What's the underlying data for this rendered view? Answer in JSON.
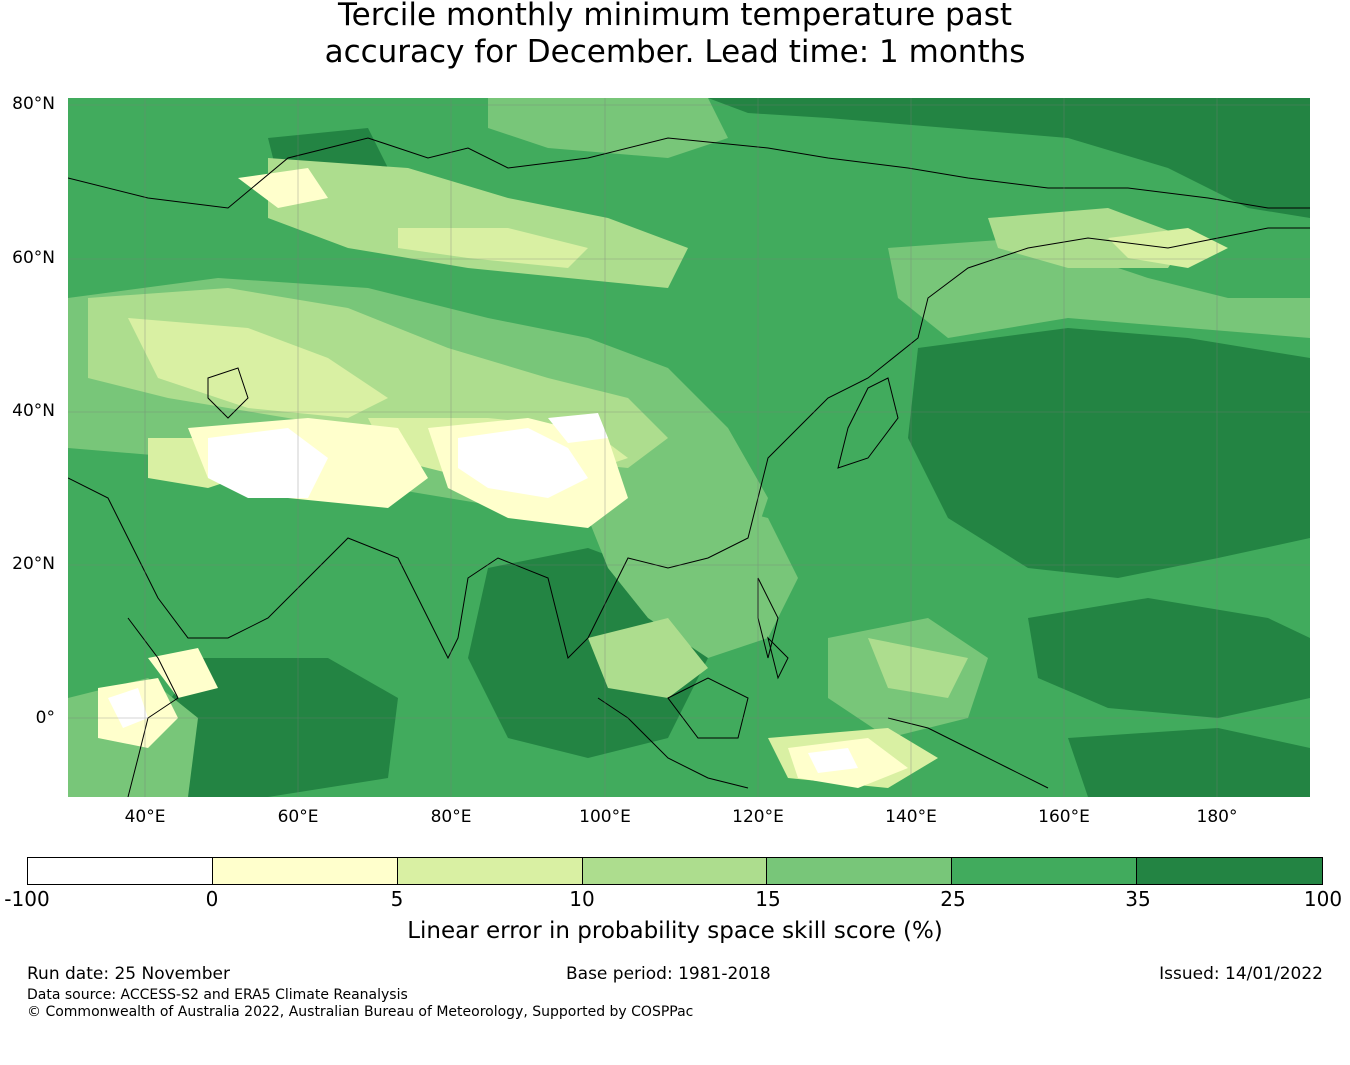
{
  "title": {
    "line1": "Tercile monthly minimum temperature past",
    "line2": "accuracy for December. Lead time: 1 months"
  },
  "map": {
    "lat_labels": [
      "80°N",
      "60°N",
      "40°N",
      "20°N",
      "0°"
    ],
    "lon_labels": [
      "40°E",
      "60°E",
      "80°E",
      "100°E",
      "120°E",
      "140°E",
      "160°E",
      "180°"
    ],
    "extent_lon": [
      30,
      192
    ],
    "extent_lat": [
      -10,
      80
    ],
    "grid": true,
    "background_color": "#41ab5d"
  },
  "colorbar": {
    "label": "Linear error in probability space skill score (%)",
    "ticks": [
      "-100",
      "0",
      "5",
      "10",
      "15",
      "25",
      "35",
      "100"
    ],
    "colors": [
      "#ffffff",
      "#ffffcc",
      "#d9f0a3",
      "#addd8e",
      "#78c679",
      "#41ab5d",
      "#238443"
    ]
  },
  "footer": {
    "run_date": "Run date: 25 November",
    "base_period": "Base period: 1981-2018",
    "issued": "Issued: 14/01/2022",
    "data_source": "Data source: ACCESS-S2 and ERA5 Climate Reanalysis",
    "copyright": "© Commonwealth of Australia 2022, Australian Bureau of Meteorology, Supported by COSPPac"
  }
}
